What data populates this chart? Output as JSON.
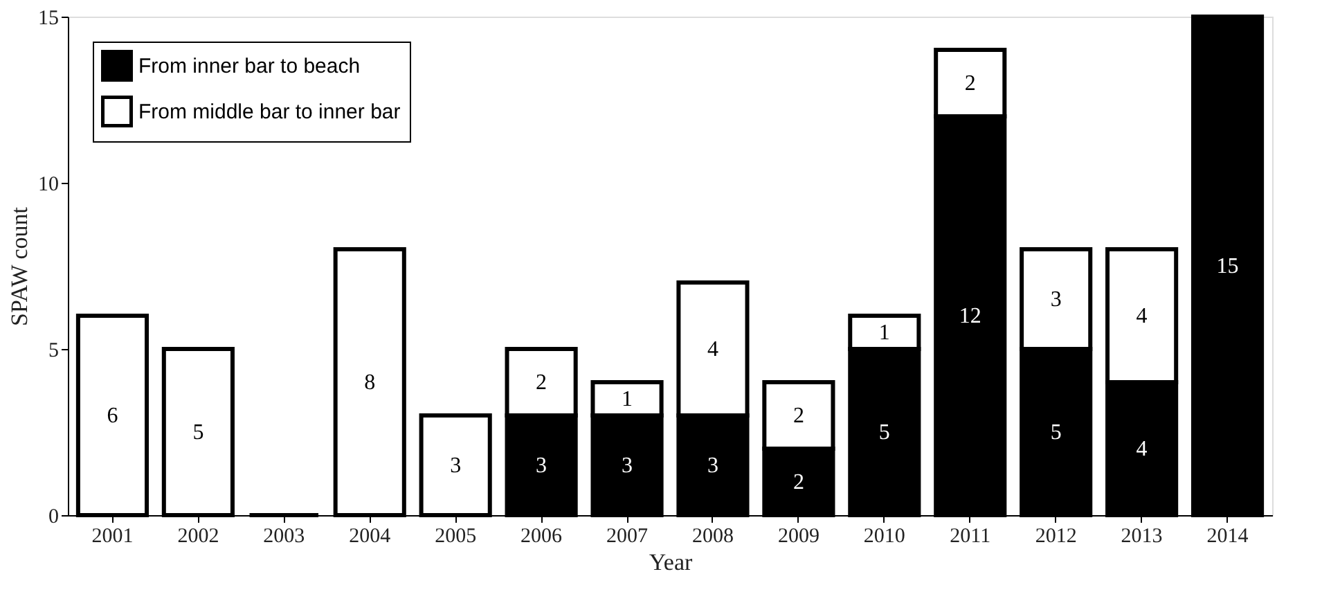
{
  "chart_data": {
    "type": "bar",
    "stacked": true,
    "xlabel": "Year",
    "ylabel": "SPAW count",
    "ylim": [
      0,
      15
    ],
    "yticks": [
      0,
      5,
      10,
      15
    ],
    "grid": false,
    "legend": "top left",
    "categories": [
      "2001",
      "2002",
      "2003",
      "2004",
      "2005",
      "2006",
      "2007",
      "2008",
      "2009",
      "2010",
      "2011",
      "2012",
      "2013",
      "2014"
    ],
    "series": [
      {
        "name": "From inner bar to beach",
        "color": "#000000",
        "values": [
          0,
          0,
          0,
          0,
          0,
          3,
          3,
          3,
          2,
          5,
          12,
          5,
          4,
          15
        ],
        "value_labels": [
          null,
          null,
          null,
          null,
          null,
          "3",
          "3",
          "3",
          "2",
          "5",
          "12",
          "5",
          "4",
          "15"
        ]
      },
      {
        "name": "From middle bar to inner bar",
        "color": "#ffffff",
        "values": [
          6,
          5,
          0,
          8,
          3,
          2,
          1,
          4,
          2,
          1,
          2,
          3,
          4,
          0
        ],
        "value_labels": [
          "6",
          "5",
          null,
          "8",
          "3",
          "2",
          "1",
          "4",
          "2",
          "1",
          "2",
          "3",
          "4",
          null
        ]
      }
    ]
  }
}
